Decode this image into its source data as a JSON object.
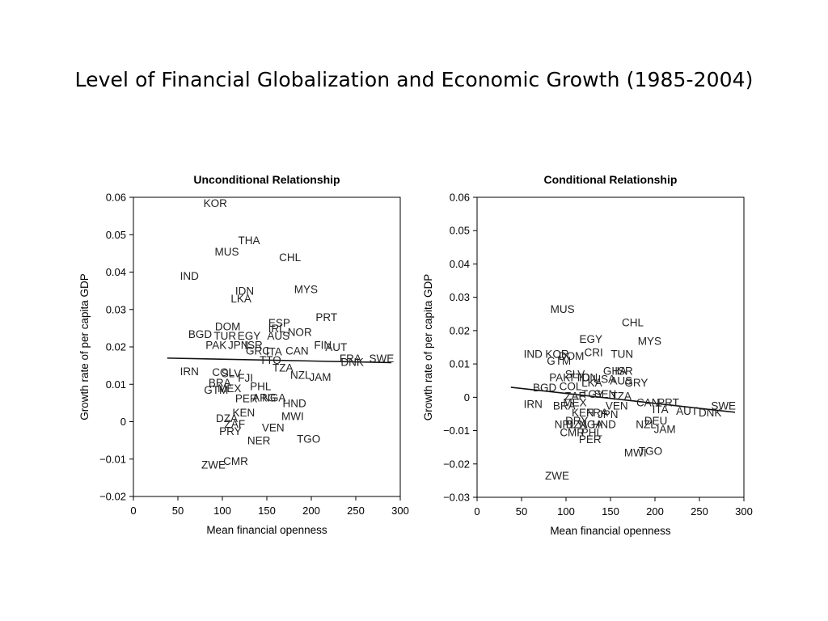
{
  "slide": {
    "title": "Level of Financial Globalization and Economic Growth (1985-2004)"
  },
  "chart_data": [
    {
      "type": "scatter",
      "title": "Unconditional Relationship",
      "xlabel": "Mean financial openness",
      "ylabel": "Growth rate of per capita GDP",
      "xlim": [
        0,
        300
      ],
      "ylim": [
        -0.02,
        0.06
      ],
      "xticks": [
        0,
        50,
        100,
        150,
        200,
        250,
        300
      ],
      "yticks": [
        -0.02,
        -0.01,
        0,
        0.01,
        0.02,
        0.03,
        0.04,
        0.05,
        0.06
      ],
      "ytick_labels": [
        "−0.02",
        "−0.01",
        "0",
        "0.01",
        "0.02",
        "0.03",
        "0.04",
        "0.05",
        "0.06"
      ],
      "grid": false,
      "fit_line": {
        "x": [
          38,
          290
        ],
        "y": [
          0.017,
          0.0158
        ]
      },
      "points": [
        {
          "label": "KOR",
          "x": 92,
          "y": 0.0585
        },
        {
          "label": "THA",
          "x": 130,
          "y": 0.0485
        },
        {
          "label": "MUS",
          "x": 105,
          "y": 0.0455
        },
        {
          "label": "CHL",
          "x": 176,
          "y": 0.044
        },
        {
          "label": "IND",
          "x": 63,
          "y": 0.039
        },
        {
          "label": "IDN",
          "x": 125,
          "y": 0.035
        },
        {
          "label": "MYS",
          "x": 194,
          "y": 0.0355
        },
        {
          "label": "LKA",
          "x": 121,
          "y": 0.033
        },
        {
          "label": "PRT",
          "x": 217,
          "y": 0.028
        },
        {
          "label": "ESP",
          "x": 164,
          "y": 0.0265
        },
        {
          "label": "DOM",
          "x": 106,
          "y": 0.0255
        },
        {
          "label": "IRL",
          "x": 161,
          "y": 0.025
        },
        {
          "label": "NOR",
          "x": 187,
          "y": 0.024
        },
        {
          "label": "BGD",
          "x": 75,
          "y": 0.0235
        },
        {
          "label": "TUR",
          "x": 103,
          "y": 0.023
        },
        {
          "label": "EGY",
          "x": 130,
          "y": 0.023
        },
        {
          "label": "AUS",
          "x": 163,
          "y": 0.023
        },
        {
          "label": "PAK",
          "x": 93,
          "y": 0.0205
        },
        {
          "label": "JPN",
          "x": 118,
          "y": 0.0205
        },
        {
          "label": "ISR",
          "x": 135,
          "y": 0.0205
        },
        {
          "label": "FIN",
          "x": 213,
          "y": 0.0205
        },
        {
          "label": "AUT",
          "x": 228,
          "y": 0.02
        },
        {
          "label": "GRC",
          "x": 140,
          "y": 0.019
        },
        {
          "label": "ITA",
          "x": 158,
          "y": 0.0188
        },
        {
          "label": "CAN",
          "x": 184,
          "y": 0.019
        },
        {
          "label": "FRA",
          "x": 244,
          "y": 0.017
        },
        {
          "label": "SWE",
          "x": 279,
          "y": 0.017
        },
        {
          "label": "DNK",
          "x": 246,
          "y": 0.016
        },
        {
          "label": "TTO",
          "x": 154,
          "y": 0.0165
        },
        {
          "label": "TZA",
          "x": 168,
          "y": 0.0145
        },
        {
          "label": "IRN",
          "x": 63,
          "y": 0.0135
        },
        {
          "label": "COL",
          "x": 101,
          "y": 0.0133
        },
        {
          "label": "SLV",
          "x": 110,
          "y": 0.013
        },
        {
          "label": "NZL",
          "x": 188,
          "y": 0.0125
        },
        {
          "label": "JAM",
          "x": 210,
          "y": 0.012
        },
        {
          "label": "FJI",
          "x": 126,
          "y": 0.0118
        },
        {
          "label": "BRA",
          "x": 97,
          "y": 0.0105
        },
        {
          "label": "MEX",
          "x": 108,
          "y": 0.009
        },
        {
          "label": "PHL",
          "x": 143,
          "y": 0.0095
        },
        {
          "label": "GTM",
          "x": 93,
          "y": 0.0085
        },
        {
          "label": "PER",
          "x": 127,
          "y": 0.0063
        },
        {
          "label": "ARG",
          "x": 147,
          "y": 0.0065
        },
        {
          "label": "NGA",
          "x": 158,
          "y": 0.0065
        },
        {
          "label": "HND",
          "x": 181,
          "y": 0.005
        },
        {
          "label": "KEN",
          "x": 124,
          "y": 0.0025
        },
        {
          "label": "MWI",
          "x": 179,
          "y": 0.0015
        },
        {
          "label": "DZA",
          "x": 105,
          "y": 0.001
        },
        {
          "label": "ZAF",
          "x": 114,
          "y": -0.0005
        },
        {
          "label": "VEN",
          "x": 157,
          "y": -0.0015
        },
        {
          "label": "PRY",
          "x": 109,
          "y": -0.0025
        },
        {
          "label": "TGO",
          "x": 197,
          "y": -0.0045
        },
        {
          "label": "NER",
          "x": 141,
          "y": -0.005
        },
        {
          "label": "CMR",
          "x": 115,
          "y": -0.0105
        },
        {
          "label": "ZWE",
          "x": 90,
          "y": -0.0115
        }
      ]
    },
    {
      "type": "scatter",
      "title": "Conditional Relationship",
      "xlabel": "Mean financial openness",
      "ylabel": "Growth rate of per capita GDP",
      "xlim": [
        0,
        300
      ],
      "ylim": [
        -0.03,
        0.06
      ],
      "xticks": [
        0,
        50,
        100,
        150,
        200,
        250,
        300
      ],
      "yticks": [
        -0.03,
        -0.02,
        -0.01,
        0,
        0.01,
        0.02,
        0.03,
        0.04,
        0.05,
        0.06
      ],
      "ytick_labels": [
        "−0.03",
        "−0.02",
        "−0.01",
        "0",
        "0.01",
        "0.02",
        "0.03",
        "0.04",
        "0.05",
        "0.06"
      ],
      "grid": false,
      "fit_line": {
        "x": [
          38,
          290
        ],
        "y": [
          0.003,
          -0.0045
        ]
      },
      "points": [
        {
          "label": "MUS",
          "x": 96,
          "y": 0.0265
        },
        {
          "label": "CHL",
          "x": 175,
          "y": 0.0225
        },
        {
          "label": "EGY",
          "x": 128,
          "y": 0.0175
        },
        {
          "label": "MYS",
          "x": 194,
          "y": 0.017
        },
        {
          "label": "IND",
          "x": 63,
          "y": 0.013
        },
        {
          "label": "KOR",
          "x": 90,
          "y": 0.013
        },
        {
          "label": "DOM",
          "x": 106,
          "y": 0.0125
        },
        {
          "label": "CRI",
          "x": 131,
          "y": 0.0135
        },
        {
          "label": "TUN",
          "x": 163,
          "y": 0.013
        },
        {
          "label": "GTM",
          "x": 92,
          "y": 0.011
        },
        {
          "label": "GHA",
          "x": 155,
          "y": 0.008
        },
        {
          "label": "ISR",
          "x": 165,
          "y": 0.008
        },
        {
          "label": "SLV",
          "x": 110,
          "y": 0.007
        },
        {
          "label": "PAK",
          "x": 93,
          "y": 0.006
        },
        {
          "label": "TTO",
          "x": 115,
          "y": 0.006
        },
        {
          "label": "IDN",
          "x": 125,
          "y": 0.006
        },
        {
          "label": "USA",
          "x": 143,
          "y": 0.0055
        },
        {
          "label": "AUS",
          "x": 162,
          "y": 0.005
        },
        {
          "label": "GRY",
          "x": 179,
          "y": 0.0045
        },
        {
          "label": "COL",
          "x": 105,
          "y": 0.0033
        },
        {
          "label": "BGD",
          "x": 76,
          "y": 0.003
        },
        {
          "label": "LKA",
          "x": 129,
          "y": 0.0045
        },
        {
          "label": "ZAF",
          "x": 110,
          "y": 0.0005
        },
        {
          "label": "TGY",
          "x": 130,
          "y": 0.001
        },
        {
          "label": "SEN",
          "x": 144,
          "y": 0.001
        },
        {
          "label": "TZA",
          "x": 162,
          "y": 0.0005
        },
        {
          "label": "IRN",
          "x": 63,
          "y": -0.002
        },
        {
          "label": "BRA",
          "x": 98,
          "y": -0.0025
        },
        {
          "label": "MEX",
          "x": 110,
          "y": -0.0015
        },
        {
          "label": "VEN",
          "x": 157,
          "y": -0.0025
        },
        {
          "label": "CAN",
          "x": 192,
          "y": -0.0015
        },
        {
          "label": "PRT",
          "x": 215,
          "y": -0.0015
        },
        {
          "label": "ITA",
          "x": 206,
          "y": -0.0035
        },
        {
          "label": "AUT",
          "x": 236,
          "y": -0.004
        },
        {
          "label": "DNK",
          "x": 262,
          "y": -0.0045
        },
        {
          "label": "SWE",
          "x": 277,
          "y": -0.0025
        },
        {
          "label": "KEN",
          "x": 119,
          "y": -0.0045
        },
        {
          "label": "FRA",
          "x": 135,
          "y": -0.0045
        },
        {
          "label": "JPN",
          "x": 147,
          "y": -0.005
        },
        {
          "label": "DEU",
          "x": 201,
          "y": -0.007
        },
        {
          "label": "DRY",
          "x": 112,
          "y": -0.007
        },
        {
          "label": "NPL",
          "x": 99,
          "y": -0.008
        },
        {
          "label": "DZA",
          "x": 112,
          "y": -0.008
        },
        {
          "label": "NGA",
          "x": 128,
          "y": -0.008
        },
        {
          "label": "HND",
          "x": 143,
          "y": -0.008
        },
        {
          "label": "NZL",
          "x": 190,
          "y": -0.008
        },
        {
          "label": "JAM",
          "x": 211,
          "y": -0.0095
        },
        {
          "label": "CMR",
          "x": 107,
          "y": -0.0105
        },
        {
          "label": "PHL",
          "x": 129,
          "y": -0.0105
        },
        {
          "label": "PER",
          "x": 127,
          "y": -0.0125
        },
        {
          "label": "MWI",
          "x": 178,
          "y": -0.0165
        },
        {
          "label": "TGO",
          "x": 195,
          "y": -0.016
        },
        {
          "label": "ZWE",
          "x": 90,
          "y": -0.0235
        }
      ]
    }
  ]
}
